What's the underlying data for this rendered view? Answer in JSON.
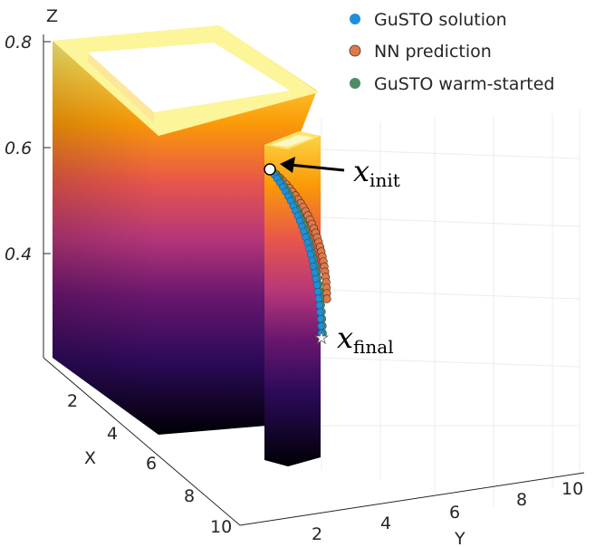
{
  "chart_data": {
    "type": "scatter",
    "title": "",
    "axes": {
      "x": {
        "label": "X",
        "ticks": [
          "2",
          "4",
          "6",
          "8",
          "10"
        ]
      },
      "y": {
        "label": "Y",
        "ticks": [
          "2",
          "4",
          "6",
          "8",
          "10"
        ]
      },
      "z": {
        "label": "Z",
        "ticks": [
          "0.4",
          "0.6",
          "0.8"
        ],
        "range": [
          0.2,
          0.8
        ]
      }
    },
    "legend": {
      "placement": "top-right",
      "entries": [
        {
          "name": "GuSTO solution",
          "color": "#1f8fd8"
        },
        {
          "name": "NN prediction",
          "color": "#e07848"
        },
        {
          "name": "GuSTO warm-started",
          "color": "#4e8c63"
        }
      ]
    },
    "annotations": {
      "init": {
        "base": "x",
        "sub": "init"
      },
      "final": {
        "base": "x",
        "sub": "final"
      }
    },
    "obstacle_colormap": [
      "#000004",
      "#2c0a59",
      "#6a176e",
      "#b63679",
      "#e8574a",
      "#fb9a06",
      "#fcd74a",
      "#fcffa4"
    ],
    "trajectory": {
      "start_z": 0.55,
      "end_z": 0.24,
      "points": 30
    }
  }
}
